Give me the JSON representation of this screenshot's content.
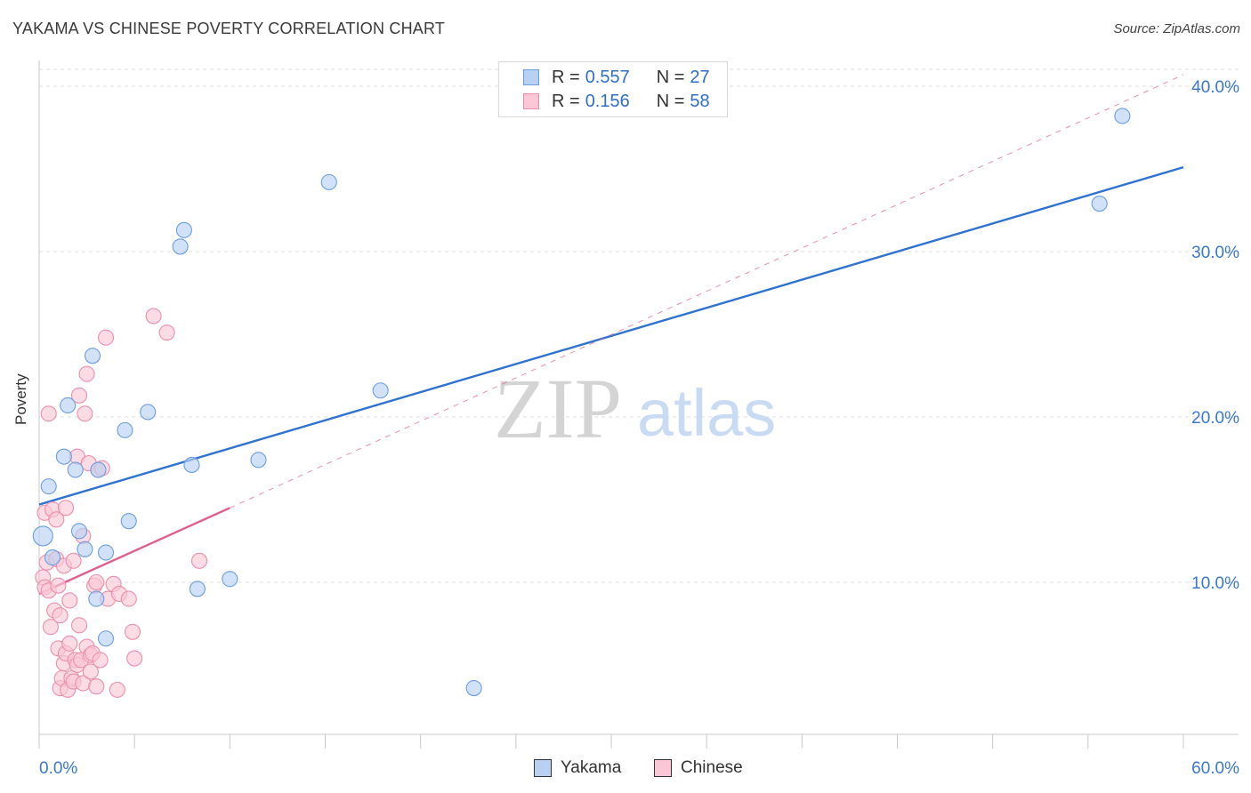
{
  "header": {
    "title": "YAKAMA VS CHINESE POVERTY CORRELATION CHART",
    "source": "Source: ZipAtlas.com"
  },
  "colors": {
    "yakama_fill": "#b8d1f3",
    "yakama_stroke": "#6b9ee0",
    "yakama_line": "#2f72d0",
    "chinese_fill": "#f9c7d6",
    "chinese_stroke": "#ec8fae",
    "chinese_line": "#e0608c",
    "axis_text": "#3a78cf",
    "grid": "#dcdcdc",
    "watermark_zip": "#d4d4d4",
    "watermark_atlas": "#c9dbf3"
  },
  "legend": {
    "r_label": "R =",
    "n_label": "N =",
    "yakama": {
      "r": "0.557",
      "n": "27"
    },
    "chinese": {
      "r": "0.156",
      "n": "58"
    }
  },
  "watermark": {
    "zip": "ZIP",
    "atlas": "atlas"
  },
  "chart_data": {
    "type": "scatter",
    "title": "YAKAMA VS CHINESE POVERTY CORRELATION CHART",
    "xlabel": "",
    "ylabel": "Poverty",
    "xlim": [
      0,
      60
    ],
    "ylim": [
      0,
      42
    ],
    "x_tick_labels": [
      "0.0%",
      "60.0%"
    ],
    "y_ticks": [
      10,
      20,
      30,
      40
    ],
    "y_tick_labels": [
      "10.0%",
      "20.0%",
      "30.0%",
      "40.0%"
    ],
    "series": [
      {
        "name": "Yakama",
        "x": [
          0.2,
          0.5,
          0.7,
          1.3,
          1.5,
          1.9,
          2.1,
          2.4,
          2.8,
          3.0,
          3.1,
          3.5,
          3.5,
          4.5,
          4.7,
          5.7,
          7.4,
          7.6,
          8.0,
          8.3,
          10.0,
          11.5,
          15.2,
          17.9,
          22.8,
          55.6,
          56.8
        ],
        "y": [
          12.8,
          15.8,
          11.5,
          17.6,
          20.7,
          16.8,
          13.1,
          12.0,
          23.7,
          9.0,
          16.8,
          6.6,
          11.8,
          19.2,
          13.7,
          20.3,
          30.3,
          31.3,
          17.1,
          9.6,
          10.2,
          17.4,
          34.2,
          21.6,
          3.6,
          32.9,
          38.2
        ]
      },
      {
        "name": "Chinese",
        "x": [
          0.2,
          0.3,
          0.3,
          0.4,
          0.5,
          0.5,
          0.6,
          0.7,
          0.8,
          0.9,
          0.9,
          1.0,
          1.0,
          1.1,
          1.1,
          1.2,
          1.3,
          1.3,
          1.4,
          1.4,
          1.5,
          1.6,
          1.6,
          1.7,
          1.8,
          1.8,
          1.9,
          2.0,
          2.0,
          2.1,
          2.1,
          2.2,
          2.3,
          2.3,
          2.4,
          2.5,
          2.5,
          2.6,
          2.7,
          2.7,
          2.8,
          2.9,
          3.0,
          3.0,
          3.1,
          3.2,
          3.3,
          3.5,
          3.6,
          3.9,
          4.1,
          4.2,
          4.7,
          4.9,
          5.0,
          6.0,
          6.7,
          8.4
        ],
        "y": [
          10.3,
          9.7,
          14.2,
          11.2,
          9.5,
          20.2,
          7.3,
          14.4,
          8.3,
          13.8,
          11.4,
          9.8,
          6.0,
          8.0,
          3.6,
          4.2,
          11.0,
          5.1,
          14.5,
          5.7,
          3.5,
          8.9,
          6.3,
          4.2,
          11.3,
          4.0,
          5.3,
          17.6,
          5.0,
          21.3,
          7.4,
          5.3,
          12.8,
          3.9,
          20.2,
          22.6,
          6.1,
          17.2,
          5.6,
          4.6,
          5.7,
          9.8,
          3.7,
          10.0,
          16.8,
          5.3,
          16.9,
          24.8,
          9.0,
          9.9,
          3.5,
          9.3,
          9.0,
          7.0,
          5.4,
          26.1,
          25.1,
          11.3
        ]
      }
    ],
    "trendlines": [
      {
        "series": "Yakama",
        "x": [
          0,
          60
        ],
        "y": [
          14.7,
          35.1
        ],
        "style": "solid"
      },
      {
        "series": "Chinese",
        "x": [
          0,
          10
        ],
        "y": [
          9.3,
          14.5
        ],
        "style": "solid"
      },
      {
        "series": "Chinese",
        "x": [
          10,
          60
        ],
        "y": [
          14.5,
          40.7
        ],
        "style": "dashed"
      }
    ],
    "grid": true,
    "legend_position": "top-center"
  }
}
